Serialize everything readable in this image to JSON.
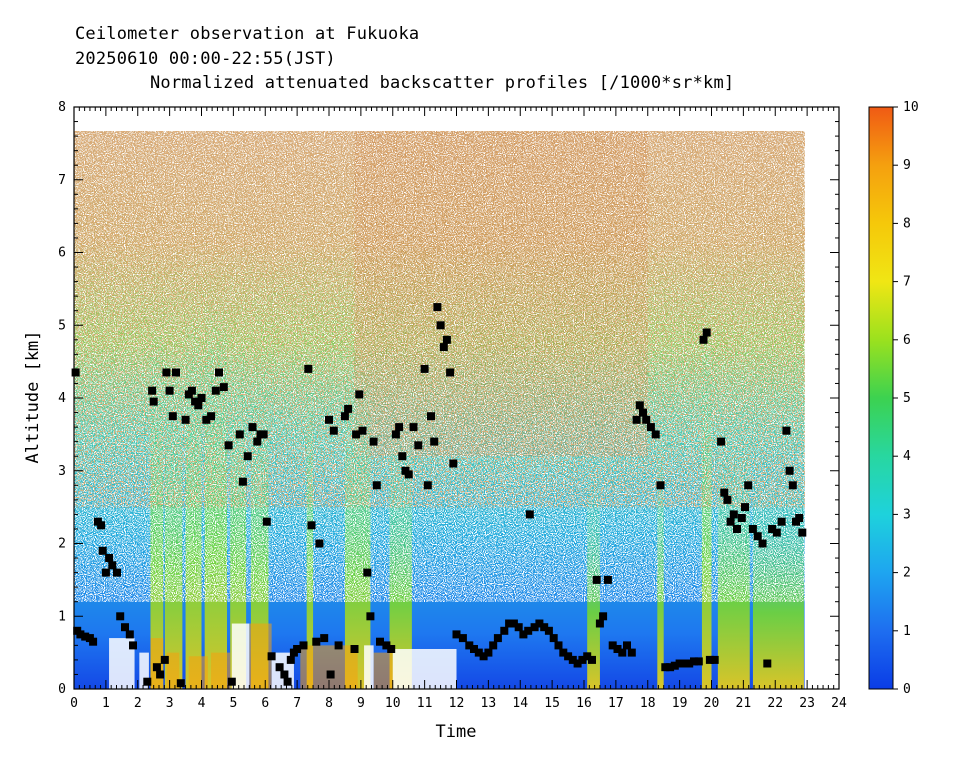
{
  "chart_data": {
    "type": "heatmap",
    "title_lines": [
      "Ceilometer observation at Fukuoka",
      "20250610  00:00-22:55(JST)",
      "Normalized attenuated backscatter profiles [/1000*sr*km]"
    ],
    "xlabel": "Time",
    "ylabel": "Altitude [km]",
    "xlim": [
      0,
      24
    ],
    "ylim": [
      0,
      8
    ],
    "x_ticks": [
      "0",
      "1",
      "2",
      "3",
      "4",
      "5",
      "6",
      "7",
      "8",
      "9",
      "10",
      "11",
      "12",
      "13",
      "14",
      "15",
      "16",
      "17",
      "18",
      "19",
      "20",
      "21",
      "22",
      "23",
      "24"
    ],
    "y_ticks": [
      "0",
      "1",
      "2",
      "3",
      "4",
      "5",
      "6",
      "7",
      "8"
    ],
    "colorbar": {
      "range": [
        0,
        10
      ],
      "ticks": [
        "0",
        "1",
        "2",
        "3",
        "4",
        "5",
        "6",
        "7",
        "8",
        "9",
        "10"
      ],
      "colors": [
        "#0a3ce6",
        "#1e6ef0",
        "#1ea5f0",
        "#1ed2dc",
        "#28d7a0",
        "#3cd250",
        "#9be11e",
        "#f0e614",
        "#f5c80a",
        "#f5a00f",
        "#f05a14"
      ]
    },
    "data_end_hour": 22.92,
    "data_top_km": 7.67,
    "cloud_base_points": [
      [
        0.05,
        4.35
      ],
      [
        0.1,
        0.8
      ],
      [
        0.2,
        0.75
      ],
      [
        0.35,
        0.72
      ],
      [
        0.5,
        0.7
      ],
      [
        0.6,
        0.65
      ],
      [
        0.75,
        2.3
      ],
      [
        0.85,
        2.25
      ],
      [
        0.9,
        1.9
      ],
      [
        1.0,
        1.6
      ],
      [
        1.1,
        1.8
      ],
      [
        1.2,
        1.7
      ],
      [
        1.35,
        1.6
      ],
      [
        1.45,
        1.0
      ],
      [
        1.6,
        0.85
      ],
      [
        1.75,
        0.75
      ],
      [
        1.85,
        0.6
      ],
      [
        2.3,
        0.1
      ],
      [
        2.45,
        4.1
      ],
      [
        2.5,
        3.95
      ],
      [
        2.6,
        0.3
      ],
      [
        2.7,
        0.2
      ],
      [
        2.85,
        0.4
      ],
      [
        2.9,
        4.35
      ],
      [
        3.0,
        4.1
      ],
      [
        3.1,
        3.75
      ],
      [
        3.2,
        4.35
      ],
      [
        3.35,
        0.08
      ],
      [
        3.5,
        3.7
      ],
      [
        3.6,
        4.05
      ],
      [
        3.7,
        4.1
      ],
      [
        3.8,
        3.95
      ],
      [
        3.9,
        3.9
      ],
      [
        4.0,
        4.0
      ],
      [
        4.15,
        3.7
      ],
      [
        4.3,
        3.75
      ],
      [
        4.45,
        4.1
      ],
      [
        4.55,
        4.35
      ],
      [
        4.7,
        4.15
      ],
      [
        4.85,
        3.35
      ],
      [
        4.95,
        0.1
      ],
      [
        5.2,
        3.5
      ],
      [
        5.3,
        2.85
      ],
      [
        5.45,
        3.2
      ],
      [
        5.6,
        3.6
      ],
      [
        5.75,
        3.4
      ],
      [
        5.85,
        3.5
      ],
      [
        5.95,
        3.5
      ],
      [
        6.05,
        2.3
      ],
      [
        6.2,
        0.45
      ],
      [
        6.45,
        0.3
      ],
      [
        6.6,
        0.2
      ],
      [
        6.7,
        0.1
      ],
      [
        6.8,
        0.4
      ],
      [
        6.9,
        0.5
      ],
      [
        7.0,
        0.55
      ],
      [
        7.2,
        0.6
      ],
      [
        7.35,
        4.4
      ],
      [
        7.45,
        2.25
      ],
      [
        7.6,
        0.65
      ],
      [
        7.7,
        2.0
      ],
      [
        7.85,
        0.7
      ],
      [
        8.0,
        3.7
      ],
      [
        8.05,
        0.2
      ],
      [
        8.15,
        3.55
      ],
      [
        8.3,
        0.6
      ],
      [
        8.5,
        3.75
      ],
      [
        8.6,
        3.85
      ],
      [
        8.8,
        0.55
      ],
      [
        8.85,
        3.5
      ],
      [
        8.95,
        4.05
      ],
      [
        9.05,
        3.55
      ],
      [
        9.2,
        1.6
      ],
      [
        9.3,
        1.0
      ],
      [
        9.4,
        3.4
      ],
      [
        9.5,
        2.8
      ],
      [
        9.6,
        0.65
      ],
      [
        9.8,
        0.6
      ],
      [
        9.95,
        0.55
      ],
      [
        10.1,
        3.5
      ],
      [
        10.2,
        3.6
      ],
      [
        10.3,
        3.2
      ],
      [
        10.4,
        3.0
      ],
      [
        10.5,
        2.95
      ],
      [
        10.65,
        3.6
      ],
      [
        10.8,
        3.35
      ],
      [
        11.0,
        4.4
      ],
      [
        11.1,
        2.8
      ],
      [
        11.2,
        3.75
      ],
      [
        11.3,
        3.4
      ],
      [
        11.4,
        5.25
      ],
      [
        11.5,
        5.0
      ],
      [
        11.6,
        4.7
      ],
      [
        11.7,
        4.8
      ],
      [
        11.8,
        4.35
      ],
      [
        11.9,
        3.1
      ],
      [
        12.0,
        0.75
      ],
      [
        12.2,
        0.7
      ],
      [
        12.4,
        0.6
      ],
      [
        12.55,
        0.55
      ],
      [
        12.7,
        0.5
      ],
      [
        12.85,
        0.45
      ],
      [
        13.0,
        0.5
      ],
      [
        13.15,
        0.6
      ],
      [
        13.3,
        0.7
      ],
      [
        13.5,
        0.8
      ],
      [
        13.65,
        0.9
      ],
      [
        13.8,
        0.9
      ],
      [
        13.95,
        0.85
      ],
      [
        14.1,
        0.75
      ],
      [
        14.25,
        0.8
      ],
      [
        14.3,
        2.4
      ],
      [
        14.45,
        0.85
      ],
      [
        14.6,
        0.9
      ],
      [
        14.75,
        0.85
      ],
      [
        14.9,
        0.8
      ],
      [
        15.05,
        0.7
      ],
      [
        15.2,
        0.6
      ],
      [
        15.35,
        0.5
      ],
      [
        15.5,
        0.45
      ],
      [
        15.65,
        0.4
      ],
      [
        15.8,
        0.35
      ],
      [
        15.95,
        0.4
      ],
      [
        16.1,
        0.45
      ],
      [
        16.25,
        0.4
      ],
      [
        16.4,
        1.5
      ],
      [
        16.5,
        0.9
      ],
      [
        16.6,
        1.0
      ],
      [
        16.75,
        1.5
      ],
      [
        16.9,
        0.6
      ],
      [
        17.05,
        0.55
      ],
      [
        17.2,
        0.5
      ],
      [
        17.35,
        0.6
      ],
      [
        17.5,
        0.5
      ],
      [
        17.65,
        3.7
      ],
      [
        17.75,
        3.9
      ],
      [
        17.85,
        3.8
      ],
      [
        17.95,
        3.7
      ],
      [
        18.1,
        3.6
      ],
      [
        18.25,
        3.5
      ],
      [
        18.4,
        2.8
      ],
      [
        18.55,
        0.3
      ],
      [
        18.7,
        0.3
      ],
      [
        18.85,
        0.32
      ],
      [
        19.0,
        0.35
      ],
      [
        19.15,
        0.35
      ],
      [
        19.3,
        0.35
      ],
      [
        19.45,
        0.38
      ],
      [
        19.6,
        0.38
      ],
      [
        19.75,
        4.8
      ],
      [
        19.85,
        4.9
      ],
      [
        19.95,
        0.4
      ],
      [
        20.1,
        0.4
      ],
      [
        20.3,
        3.4
      ],
      [
        20.4,
        2.7
      ],
      [
        20.5,
        2.6
      ],
      [
        20.6,
        2.3
      ],
      [
        20.7,
        2.4
      ],
      [
        20.8,
        2.2
      ],
      [
        20.95,
        2.35
      ],
      [
        21.05,
        2.5
      ],
      [
        21.15,
        2.8
      ],
      [
        21.3,
        2.2
      ],
      [
        21.45,
        2.1
      ],
      [
        21.6,
        2.0
      ],
      [
        21.75,
        0.35
      ],
      [
        21.9,
        2.2
      ],
      [
        22.05,
        2.15
      ],
      [
        22.2,
        2.3
      ],
      [
        22.35,
        3.55
      ],
      [
        22.45,
        3.0
      ],
      [
        22.55,
        2.8
      ],
      [
        22.65,
        2.3
      ],
      [
        22.75,
        2.35
      ],
      [
        22.85,
        2.15
      ]
    ]
  }
}
